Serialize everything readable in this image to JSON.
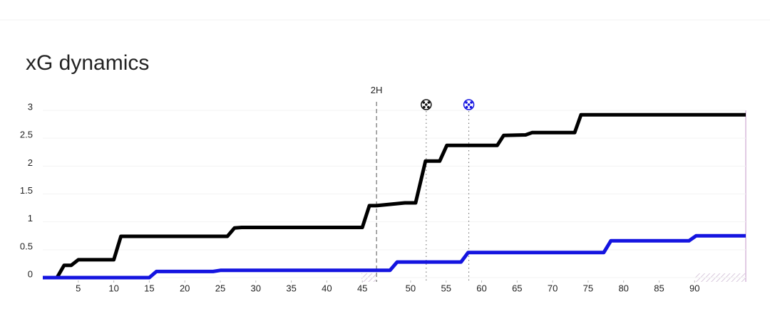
{
  "chart_data": {
    "type": "line",
    "title": "xG dynamics",
    "xlim": [
      0,
      99
    ],
    "ylim": [
      0,
      3
    ],
    "xticks": [
      5,
      10,
      15,
      20,
      25,
      30,
      35,
      40,
      45,
      {
        "value": 51.8,
        "label": "50"
      },
      {
        "value": 56.8,
        "label": "55"
      },
      {
        "value": 61.8,
        "label": "60"
      },
      {
        "value": 66.8,
        "label": "65"
      },
      {
        "value": 71.8,
        "label": "70"
      },
      {
        "value": 76.8,
        "label": "75"
      },
      {
        "value": 81.8,
        "label": "80"
      },
      {
        "value": 86.8,
        "label": "85"
      },
      {
        "value": 91.8,
        "label": "90"
      }
    ],
    "yticks": [
      0,
      0.5,
      1,
      1.5,
      2,
      2.5,
      3
    ],
    "grid": true,
    "annotations": [
      {
        "x": 47,
        "label": "2H"
      }
    ],
    "goals": [
      {
        "x": 54,
        "color": "#111111"
      },
      {
        "x": 60,
        "color": "#1414e0"
      }
    ],
    "series": [
      {
        "color": "#000000",
        "x": [
          0,
          2,
          3,
          4,
          5,
          10,
          11,
          26,
          27,
          28,
          45,
          46,
          47,
          51,
          52.5,
          53.9,
          55.9,
          56.9,
          64,
          64.9,
          68,
          68.9,
          74.9,
          75.8,
          90,
          99
        ],
        "values": [
          0,
          0,
          0.22,
          0.22,
          0.32,
          0.32,
          0.74,
          0.74,
          0.89,
          0.9,
          0.9,
          1.29,
          1.29,
          1.34,
          1.34,
          2.09,
          2.09,
          2.37,
          2.37,
          2.55,
          2.56,
          2.6,
          2.6,
          2.92,
          2.92,
          2.92
        ]
      },
      {
        "color": "#1414e0",
        "x": [
          0,
          15,
          16,
          24,
          25,
          48.9,
          49.9,
          58.9,
          59.9,
          79,
          80,
          91,
          92,
          99
        ],
        "values": [
          0,
          0,
          0.11,
          0.11,
          0.13,
          0.13,
          0.28,
          0.28,
          0.45,
          0.45,
          0.66,
          0.66,
          0.75,
          0.75
        ]
      }
    ]
  }
}
